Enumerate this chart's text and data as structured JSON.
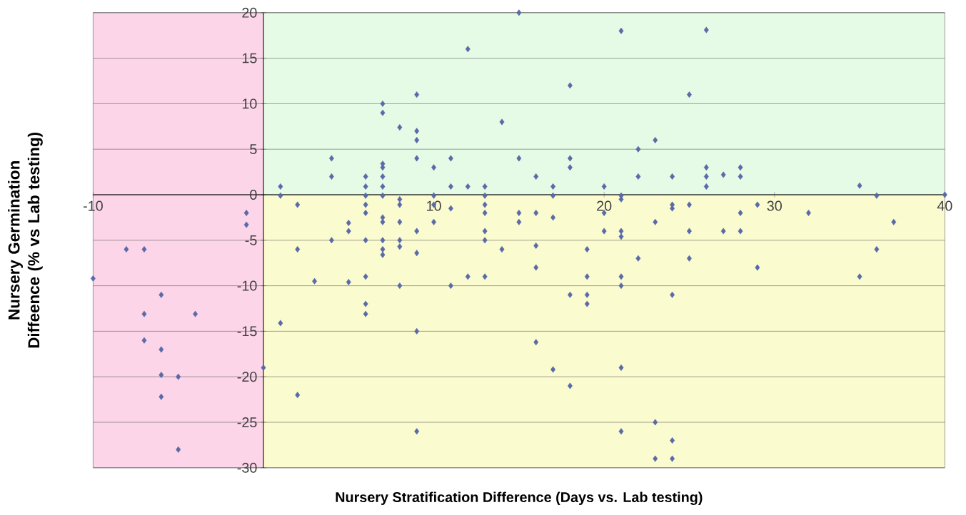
{
  "chart_data": {
    "type": "scatter",
    "xlabel": "Nursery Stratification Difference (Days vs. Lab testing)",
    "ylabel": "Nursery Germination Diffeence (% vs Lab testing)",
    "x": [
      -10,
      -8.05,
      -7,
      -7,
      -7,
      -6,
      -6,
      -6,
      -6,
      -5,
      -5,
      -4,
      -1,
      -1,
      0,
      1,
      1,
      1,
      2,
      2,
      2,
      3,
      4,
      4,
      4,
      5,
      5,
      5,
      6,
      6,
      6,
      6,
      6,
      6,
      6,
      6,
      6,
      7,
      7,
      7,
      7,
      7,
      7,
      7,
      7,
      7,
      7,
      7,
      7,
      8,
      8,
      8,
      8,
      8,
      8,
      8,
      9,
      9,
      9,
      9,
      9,
      9,
      9,
      9,
      10,
      10,
      10,
      10,
      11,
      11,
      11,
      11,
      12,
      12,
      12,
      13,
      13,
      13,
      13,
      13,
      13,
      13,
      14,
      14,
      15,
      15,
      15,
      15,
      16,
      16,
      16,
      16,
      16,
      17,
      17,
      17,
      17,
      18,
      18,
      18,
      18,
      18,
      19,
      19,
      19,
      19,
      20,
      20,
      20,
      21,
      21,
      21,
      21,
      21,
      21,
      21,
      21,
      21,
      22,
      22,
      22,
      23,
      23,
      23,
      23,
      24,
      24,
      24,
      24,
      24,
      24,
      25,
      25,
      25,
      25,
      26,
      26,
      26,
      26,
      27,
      27,
      28,
      28,
      28,
      28,
      29,
      29,
      32,
      35,
      35,
      36,
      36,
      37,
      40
    ],
    "values": [
      -9.2,
      -6,
      -6,
      -13.1,
      -16,
      -11,
      -17,
      -19.8,
      -22.2,
      -20,
      -28,
      -13.1,
      -2,
      -3.3,
      -19,
      0.9,
      -0.1,
      -14.1,
      -1.1,
      -6,
      -22,
      -9.5,
      4,
      2,
      -5,
      -3.1,
      -4,
      -9.6,
      2,
      0.9,
      -0.1,
      -1.1,
      -2,
      -5,
      -9,
      -12,
      -13.1,
      10,
      9,
      3.4,
      3,
      2,
      0.9,
      -0.1,
      -2.5,
      -3,
      -6,
      -6.6,
      -5,
      7.4,
      -0.5,
      -1.1,
      -3,
      -5,
      -5.7,
      -10,
      11,
      7,
      6,
      4,
      -4,
      -6.4,
      -15,
      -26,
      3,
      -0.1,
      -1.1,
      -3,
      4,
      0.9,
      -1.5,
      -10,
      16,
      0.9,
      -9,
      0.9,
      -0.1,
      -1.1,
      -2,
      -4,
      -5,
      -9,
      8,
      -6,
      20,
      4,
      -2,
      -3,
      2,
      -2,
      -5.6,
      -8,
      -16.2,
      0.9,
      -0.1,
      -2.5,
      -19.2,
      12,
      4,
      3,
      -11,
      -21,
      -6,
      -9,
      -11,
      -12,
      0.9,
      -2,
      -4,
      18,
      -0.1,
      -0.5,
      -4,
      -4.6,
      -9,
      -10,
      -19,
      -26,
      5,
      2,
      -7,
      6,
      -3,
      -25,
      -29,
      2,
      -1.1,
      -1.5,
      -11,
      -27,
      -29,
      11,
      -1.1,
      -4,
      -7,
      18.1,
      3,
      2,
      0.9,
      2.2,
      -4,
      3,
      2,
      -2,
      -4,
      -1.1,
      -8,
      -2,
      1,
      -9,
      -0.1,
      -6,
      -3,
      0
    ],
    "color": "#5a6aa8",
    "marker": "diamond",
    "xlim": [
      -10,
      40
    ],
    "ylim": [
      -30,
      20
    ],
    "xticks": [
      -10,
      10,
      20,
      30,
      40
    ],
    "yticks": [
      -30,
      -25,
      -20,
      -15,
      -10,
      -5,
      0,
      5,
      10,
      15,
      20
    ],
    "grid": "y",
    "bands": [
      {
        "axis": "y",
        "from": 0,
        "to": 20,
        "color": "#e6fbe6"
      },
      {
        "axis": "y",
        "from": -30,
        "to": 0,
        "color": "#fbfbd0"
      },
      {
        "axis": "x",
        "from": -10,
        "to": 0,
        "color": "#fcd5e8"
      }
    ]
  }
}
